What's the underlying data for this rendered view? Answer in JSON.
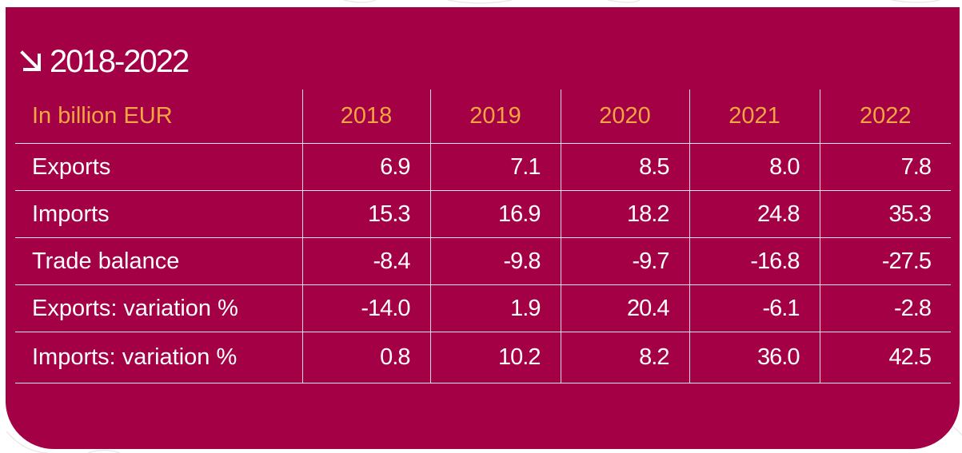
{
  "title": "2018-2022",
  "table": {
    "header": {
      "label": "In billion EUR",
      "years": [
        "2018",
        "2019",
        "2020",
        "2021",
        "2022"
      ]
    },
    "rows": [
      {
        "label": "Exports",
        "values": [
          "6.9",
          "7.1",
          "8.5",
          "8.0",
          "7.8"
        ]
      },
      {
        "label": "Imports",
        "values": [
          "15.3",
          "16.9",
          "18.2",
          "24.8",
          "35.3"
        ]
      },
      {
        "label": "Trade balance",
        "values": [
          "-8.4",
          "-9.8",
          "-9.7",
          "-16.8",
          "-27.5"
        ]
      },
      {
        "label": "Exports: variation %",
        "values": [
          "-14.0",
          "1.9",
          "20.4",
          "-6.1",
          "-2.8"
        ]
      },
      {
        "label": "Imports: variation %",
        "values": [
          "0.8",
          "10.2",
          "8.2",
          "36.0",
          "42.5"
        ]
      }
    ]
  },
  "colors": {
    "panel": "#a30046",
    "header_text": "#f4a640",
    "body_text": "#ffffff"
  },
  "icons": {
    "title_arrow": "arrow-down-right-icon"
  }
}
